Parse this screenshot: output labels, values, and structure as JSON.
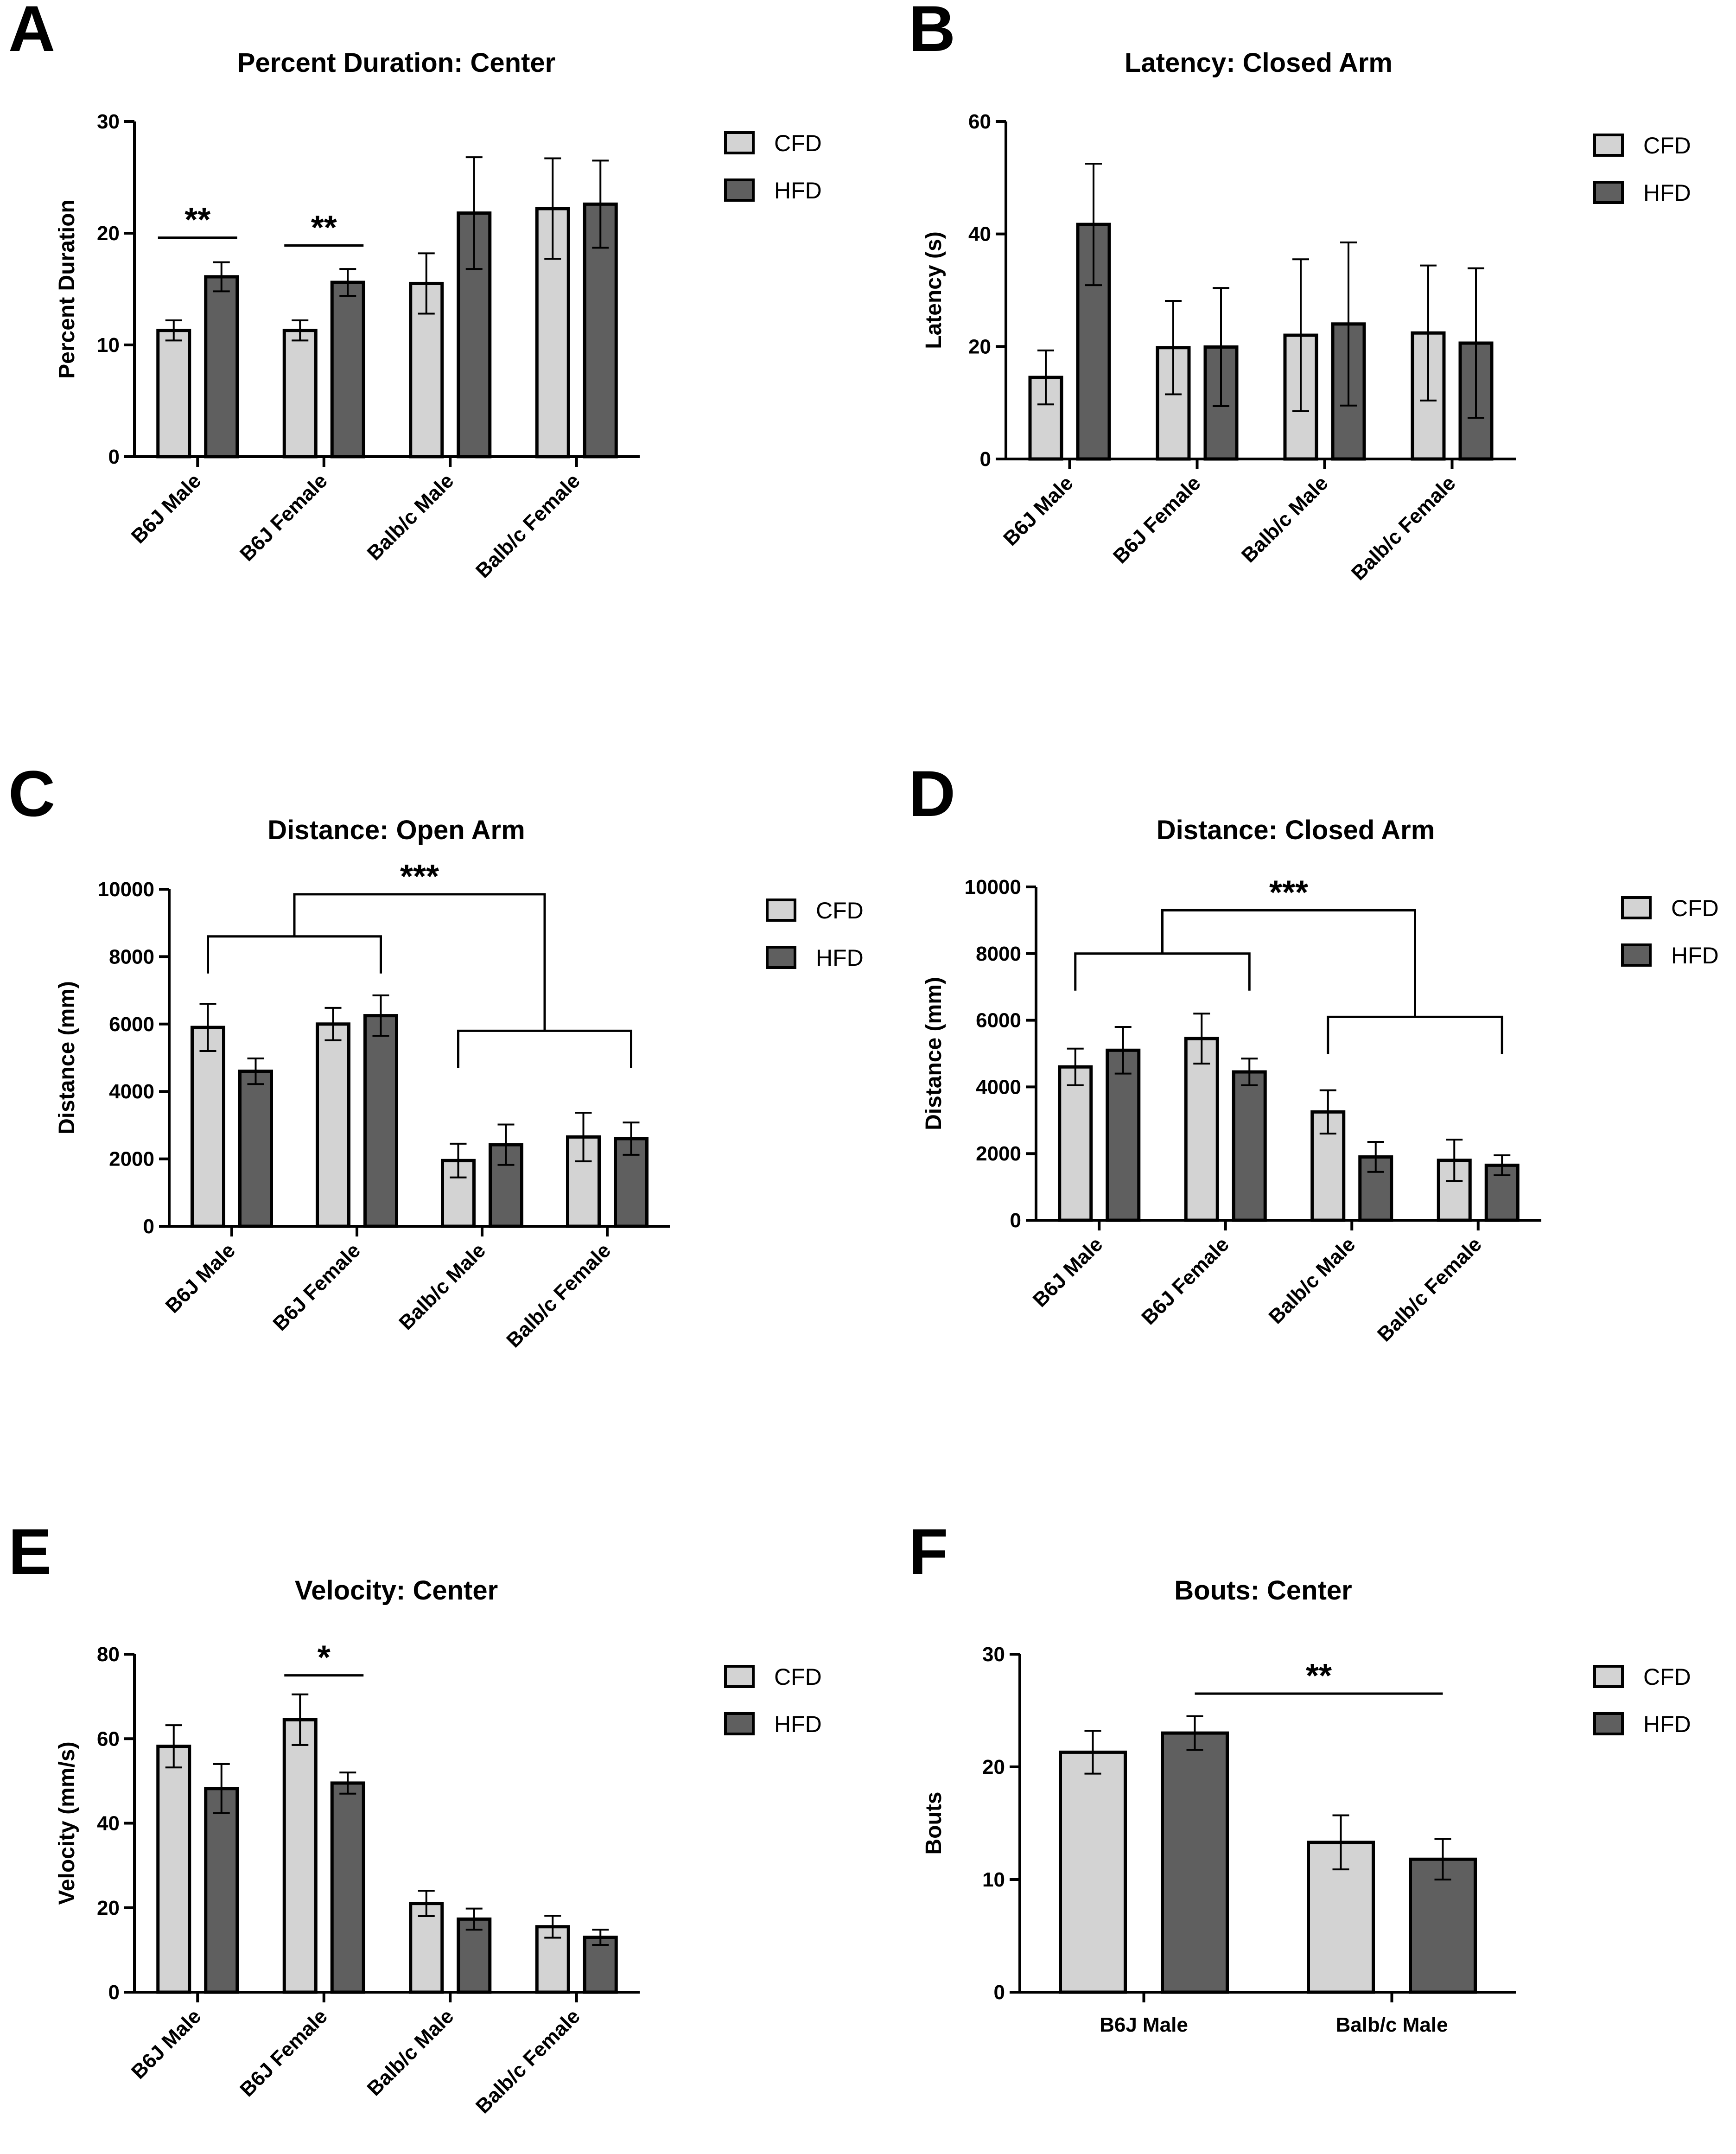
{
  "colors": {
    "CFD": "#d3d3d3",
    "HFD": "#5f5f5f",
    "stroke": "#000000"
  },
  "legend": [
    "CFD",
    "HFD"
  ],
  "chart_data": [
    {
      "letter": "A",
      "type": "bar",
      "title": "Percent Duration: Center",
      "ylabel": "Percent Duration",
      "ylim": [
        0,
        30
      ],
      "yticks": [
        0,
        10,
        20,
        30
      ],
      "categories": [
        "B6J Male",
        "B6J Female",
        "Balb/c Male",
        "Balb/c Female"
      ],
      "series": [
        {
          "name": "CFD",
          "values": [
            11.3,
            11.3,
            15.5,
            22.2
          ],
          "errors": [
            0.9,
            0.9,
            2.7,
            4.5
          ]
        },
        {
          "name": "HFD",
          "values": [
            16.1,
            15.6,
            21.8,
            22.6
          ],
          "errors": [
            1.3,
            1.2,
            5.0,
            3.9
          ]
        }
      ],
      "annotations": [
        {
          "label": "**",
          "type": "line",
          "from": [
            0,
            0
          ],
          "to": [
            0,
            1
          ],
          "y": 19.6
        },
        {
          "label": "**",
          "type": "line",
          "from": [
            1,
            0
          ],
          "to": [
            1,
            1
          ],
          "y": 18.9
        }
      ]
    },
    {
      "letter": "B",
      "type": "bar",
      "title": "Latency: Closed Arm",
      "ylabel": "Latency (s)",
      "ylim": [
        0,
        60
      ],
      "yticks": [
        0,
        20,
        40,
        60
      ],
      "categories": [
        "B6J Male",
        "B6J Female",
        "Balb/c Male",
        "Balb/c Female"
      ],
      "series": [
        {
          "name": "CFD",
          "values": [
            14.5,
            19.8,
            22.0,
            22.4
          ],
          "errors": [
            4.8,
            8.3,
            13.5,
            12.0
          ]
        },
        {
          "name": "HFD",
          "values": [
            41.7,
            19.9,
            24.0,
            20.6
          ],
          "errors": [
            10.8,
            10.5,
            14.5,
            13.3
          ]
        }
      ],
      "annotations": []
    },
    {
      "letter": "C",
      "type": "bar",
      "title": "Distance: Open Arm",
      "ylabel": "Distance (mm)",
      "ylim": [
        0,
        10000
      ],
      "yticks": [
        0,
        2000,
        4000,
        6000,
        8000,
        10000
      ],
      "categories": [
        "B6J Male",
        "B6J Female",
        "Balb/c Male",
        "Balb/c Female"
      ],
      "series": [
        {
          "name": "CFD",
          "values": [
            5900,
            6000,
            1950,
            2650
          ],
          "errors": [
            700,
            480,
            500,
            720
          ]
        },
        {
          "name": "HFD",
          "values": [
            4600,
            6250,
            2420,
            2600
          ],
          "errors": [
            380,
            600,
            600,
            480
          ]
        }
      ],
      "annotations": [
        {
          "label": "***",
          "type": "bracket",
          "left": {
            "from": [
              0,
              0
            ],
            "to": [
              1,
              1
            ],
            "y": 8600
          },
          "right": {
            "from": [
              2,
              0
            ],
            "to": [
              3,
              1
            ],
            "y": 5800
          },
          "top": 9850
        }
      ]
    },
    {
      "letter": "D",
      "type": "bar",
      "title": "Distance: Closed Arm",
      "ylabel": "Distance (mm)",
      "ylim": [
        0,
        10000
      ],
      "yticks": [
        0,
        2000,
        4000,
        6000,
        8000,
        10000
      ],
      "categories": [
        "B6J Male",
        "B6J Female",
        "Balb/c Male",
        "Balb/c Female"
      ],
      "series": [
        {
          "name": "CFD",
          "values": [
            4600,
            5450,
            3250,
            1800
          ],
          "errors": [
            550,
            750,
            650,
            620
          ]
        },
        {
          "name": "HFD",
          "values": [
            5100,
            4450,
            1900,
            1650
          ],
          "errors": [
            700,
            400,
            450,
            300
          ]
        }
      ],
      "annotations": [
        {
          "label": "***",
          "type": "bracket",
          "left": {
            "from": [
              0,
              0
            ],
            "to": [
              1,
              1
            ],
            "y": 8000
          },
          "right": {
            "from": [
              2,
              0
            ],
            "to": [
              3,
              1
            ],
            "y": 6100
          },
          "top": 9300
        }
      ]
    },
    {
      "letter": "E",
      "type": "bar",
      "title": "Velocity: Center",
      "ylabel": "Velocity (mm/s)",
      "ylim": [
        0,
        80
      ],
      "yticks": [
        0,
        20,
        40,
        60,
        80
      ],
      "categories": [
        "B6J Male",
        "B6J Female",
        "Balb/c Male",
        "Balb/c Female"
      ],
      "series": [
        {
          "name": "CFD",
          "values": [
            58.2,
            64.5,
            21.0,
            15.5
          ],
          "errors": [
            5.0,
            6.0,
            3.0,
            2.6
          ]
        },
        {
          "name": "HFD",
          "values": [
            48.2,
            49.5,
            17.3,
            13.0
          ],
          "errors": [
            5.8,
            2.5,
            2.5,
            1.8
          ]
        }
      ],
      "annotations": [
        {
          "label": "*",
          "type": "line",
          "from": [
            1,
            0
          ],
          "to": [
            1,
            1
          ],
          "y": 75.0
        }
      ]
    },
    {
      "letter": "F",
      "type": "bar",
      "title": "Bouts: Center",
      "ylabel": "Bouts",
      "ylim": [
        0,
        30
      ],
      "yticks": [
        0,
        10,
        20,
        30
      ],
      "categories": [
        "B6J Male",
        "Balb/c Male"
      ],
      "series": [
        {
          "name": "CFD",
          "values": [
            21.3,
            13.3
          ],
          "errors": [
            1.9,
            2.4
          ]
        },
        {
          "name": "HFD",
          "values": [
            23.0,
            11.8
          ],
          "errors": [
            1.5,
            1.8
          ]
        }
      ],
      "annotations": [
        {
          "label": "**",
          "type": "line",
          "from": [
            0,
            1
          ],
          "to": [
            1,
            1
          ],
          "y": 26.5
        }
      ]
    }
  ]
}
